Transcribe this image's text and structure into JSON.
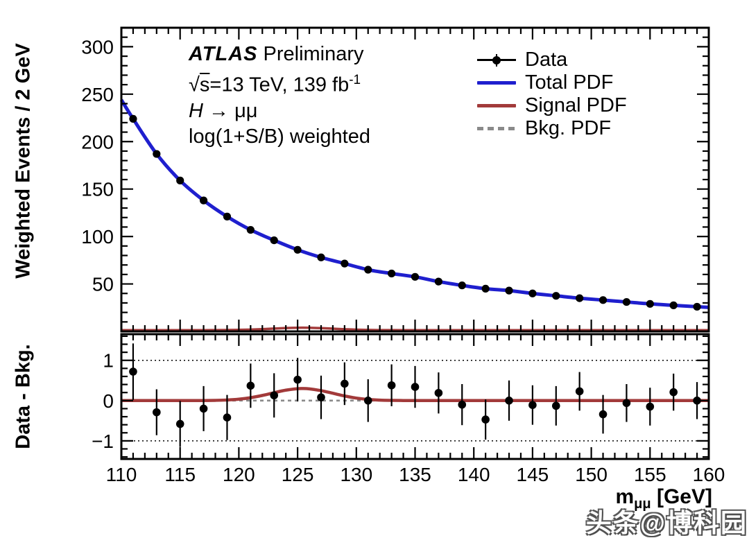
{
  "figure": {
    "bg": "#ffffff",
    "watermark": "头条@博科园"
  },
  "annotations": {
    "experiment": "ATLAS",
    "status": "Preliminary",
    "sqrt_sym": "√",
    "sqrt_arg": "s",
    "energy_lumi": "=13 TeV, 139 fb",
    "lumi_sup": "-1",
    "process_h": "H",
    "process_rest": " → μμ",
    "weighting": "log(1+S/B) weighted"
  },
  "legend": {
    "items": [
      {
        "label": "Data",
        "marker": "data-point-marker",
        "color": "#000000"
      },
      {
        "label": "Total PDF",
        "marker": "solid-line",
        "color": "#1f1fce"
      },
      {
        "label": "Signal PDF",
        "marker": "solid-line",
        "color": "#a23a3a"
      },
      {
        "label": "Bkg. PDF",
        "marker": "dashed-line",
        "color": "#8a8a8a"
      }
    ]
  },
  "axes": {
    "x": {
      "label_base": "m",
      "label_sub": "μμ",
      "label_unit": " [GeV]",
      "min": 110,
      "max": 160,
      "major_ticks": [
        110,
        115,
        120,
        125,
        130,
        135,
        140,
        145,
        150,
        155,
        160
      ],
      "major_tick_labels": [
        "110",
        "115",
        "120",
        "125",
        "130",
        "135",
        "140",
        "145",
        "150",
        "155",
        "160"
      ],
      "minor_step": 1
    },
    "y_top": {
      "title": "Weighted Events / 2 GeV",
      "min": 0,
      "max": 320,
      "major_ticks": [
        50,
        100,
        150,
        200,
        250,
        300
      ],
      "major_tick_labels": [
        "50",
        "100",
        "150",
        "200",
        "250",
        "300"
      ],
      "minor_step": 10
    },
    "y_bottom": {
      "title": "Data - Bkg.",
      "min": -1.45,
      "max": 1.65,
      "major_ticks": [
        -1,
        0,
        1
      ],
      "major_tick_labels": [
        "−1",
        "0",
        "1"
      ],
      "minor_step": 0.2,
      "guide_lines": [
        -1,
        1
      ]
    }
  },
  "chart_data": [
    {
      "panel": "main",
      "type": "line",
      "ylabel": "Weighted Events / 2 GeV",
      "xlim": [
        110,
        160
      ],
      "ylim": [
        0,
        320
      ],
      "grid": false,
      "legend_position": "top-right",
      "bin_width_gev": 2,
      "bin_centers": [
        111,
        113,
        115,
        117,
        119,
        121,
        123,
        125,
        127,
        129,
        131,
        133,
        135,
        137,
        139,
        141,
        143,
        145,
        147,
        149,
        151,
        153,
        155,
        157,
        159
      ],
      "data_weighted_events": [
        224,
        187,
        159,
        138,
        121,
        107,
        96,
        86,
        78,
        71.5,
        65,
        61,
        57.5,
        52.5,
        48.5,
        45,
        43,
        40,
        37.5,
        35,
        33,
        31,
        29,
        27.5,
        26
      ],
      "total_pdf_x": [
        110,
        111,
        113,
        115,
        117,
        119,
        121,
        123,
        125,
        127,
        129,
        131,
        133,
        135,
        137,
        139,
        141,
        143,
        145,
        147,
        149,
        151,
        153,
        155,
        157,
        159,
        160
      ],
      "total_pdf_y": [
        244,
        224,
        187,
        159,
        138,
        121,
        107,
        96,
        86,
        78,
        71.5,
        65,
        61,
        57.5,
        52.5,
        48.5,
        45,
        43,
        40,
        37.5,
        35,
        33,
        31,
        29,
        27.5,
        26,
        25.3
      ],
      "signal_pdf_x": [
        110,
        115,
        117,
        118,
        119,
        120,
        121,
        122,
        123,
        124,
        125,
        126,
        127,
        128,
        129,
        130,
        131,
        132,
        133,
        134,
        135,
        140,
        145,
        150,
        155,
        160
      ],
      "signal_pdf_y": [
        1.3,
        1.3,
        1.32,
        1.35,
        1.43,
        1.6,
        1.92,
        2.41,
        3.0,
        3.54,
        3.87,
        3.83,
        3.45,
        2.88,
        2.3,
        1.84,
        1.55,
        1.4,
        1.34,
        1.31,
        1.3,
        1.3,
        1.3,
        1.3,
        1.3,
        1.3
      ]
    },
    {
      "panel": "ratio",
      "type": "scatter",
      "ylabel": "Data - Bkg.",
      "xlim": [
        110,
        160
      ],
      "ylim": [
        -1.45,
        1.65
      ],
      "grid": false,
      "bin_centers": [
        111,
        113,
        115,
        117,
        119,
        121,
        123,
        125,
        127,
        129,
        131,
        133,
        135,
        137,
        139,
        141,
        143,
        145,
        147,
        149,
        151,
        153,
        155,
        157,
        159
      ],
      "residuals": [
        0.72,
        -0.29,
        -0.58,
        -0.2,
        -0.42,
        0.37,
        0.13,
        0.52,
        0.08,
        0.42,
        0.0,
        0.38,
        0.34,
        0.19,
        -0.1,
        -0.47,
        0.0,
        -0.11,
        -0.13,
        0.23,
        -0.34,
        -0.06,
        -0.15,
        0.21,
        0.0
      ],
      "residual_errors": [
        0.7,
        0.57,
        0.57,
        0.56,
        0.56,
        0.55,
        0.55,
        0.54,
        0.54,
        0.53,
        0.53,
        0.52,
        0.52,
        0.51,
        0.51,
        0.5,
        0.5,
        0.49,
        0.49,
        0.48,
        0.48,
        0.47,
        0.47,
        0.46,
        0.46
      ],
      "signal_pdf_x": [
        110,
        115,
        116,
        117,
        118,
        119,
        120,
        121,
        122,
        123,
        124,
        125,
        125.4,
        126,
        127,
        128,
        129,
        130,
        131,
        132,
        133,
        134,
        135,
        140,
        145,
        150,
        155,
        160
      ],
      "signal_pdf_y": [
        0,
        0,
        0.001,
        0.002,
        0.006,
        0.015,
        0.035,
        0.072,
        0.128,
        0.196,
        0.259,
        0.296,
        0.3,
        0.292,
        0.248,
        0.182,
        0.115,
        0.062,
        0.029,
        0.012,
        0.005,
        0.002,
        0,
        0,
        0,
        0,
        0,
        0
      ],
      "bkg_pdf_y": 0
    }
  ],
  "colors": {
    "data": "#000000",
    "total_pdf": "#1f1fce",
    "signal_pdf": "#a23a3a",
    "bkg_pdf": "#8a8a8a",
    "axis": "#000000",
    "background": "#ffffff"
  }
}
